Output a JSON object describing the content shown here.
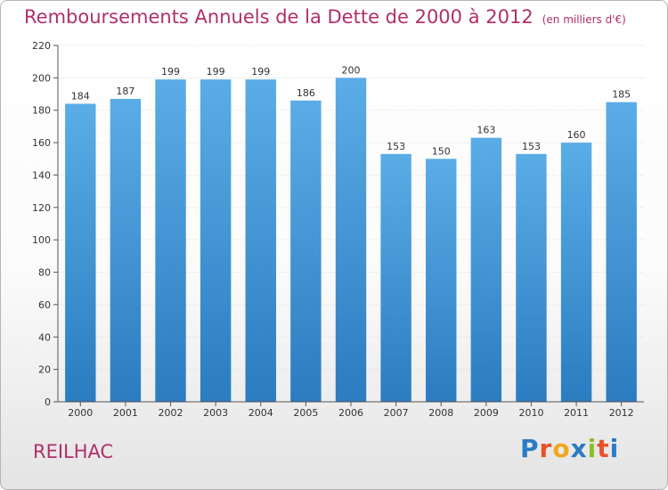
{
  "title": "Remboursements Annuels de la Dette de 2000 à 2012",
  "unit": "(en milliers d'€)",
  "town": "REILHAC",
  "logo": {
    "letters": [
      "P",
      "r",
      "o",
      "x",
      "i",
      "t",
      "i"
    ],
    "colors": [
      "#2b7bc4",
      "#e8522a",
      "#f2a51f",
      "#2b7bc4",
      "#8cbf26",
      "#e8522a",
      "#2b7bc4"
    ]
  },
  "colors": {
    "bar_dark": "#2b7cc0",
    "bar_light": "#5aade6",
    "title": "#b0306a"
  },
  "chart_data": {
    "type": "bar",
    "categories": [
      "2000",
      "2001",
      "2002",
      "2003",
      "2004",
      "2005",
      "2006",
      "2007",
      "2008",
      "2009",
      "2010",
      "2011",
      "2012"
    ],
    "values": [
      184,
      187,
      199,
      199,
      199,
      186,
      200,
      153,
      150,
      163,
      153,
      160,
      185
    ],
    "ylim": [
      0,
      220
    ],
    "yticks": [
      0,
      20,
      40,
      60,
      80,
      100,
      120,
      140,
      160,
      180,
      200,
      220
    ],
    "grid": true
  }
}
